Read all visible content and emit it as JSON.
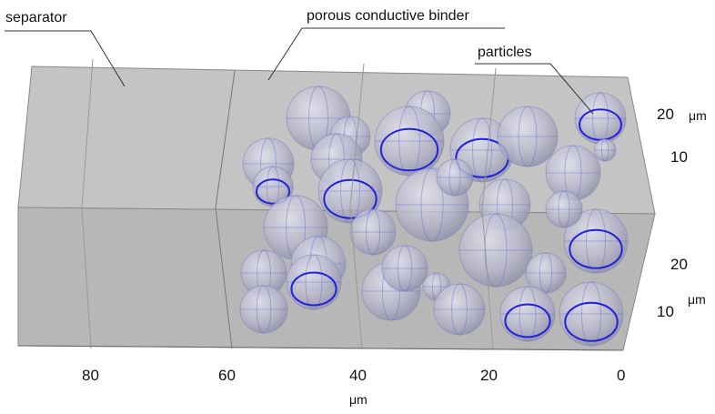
{
  "annotations": {
    "separator": "separator",
    "binder": "porous conductive binder",
    "particles": "particles"
  },
  "x_axis": {
    "ticks": [
      "80",
      "60",
      "40",
      "20",
      "0"
    ],
    "unit": "μm"
  },
  "y_axis_top": {
    "ticks": [
      "20",
      "10"
    ],
    "unit": "μm"
  },
  "y_axis_bottom": {
    "ticks": [
      "20",
      "10"
    ],
    "unit": "μm"
  }
}
